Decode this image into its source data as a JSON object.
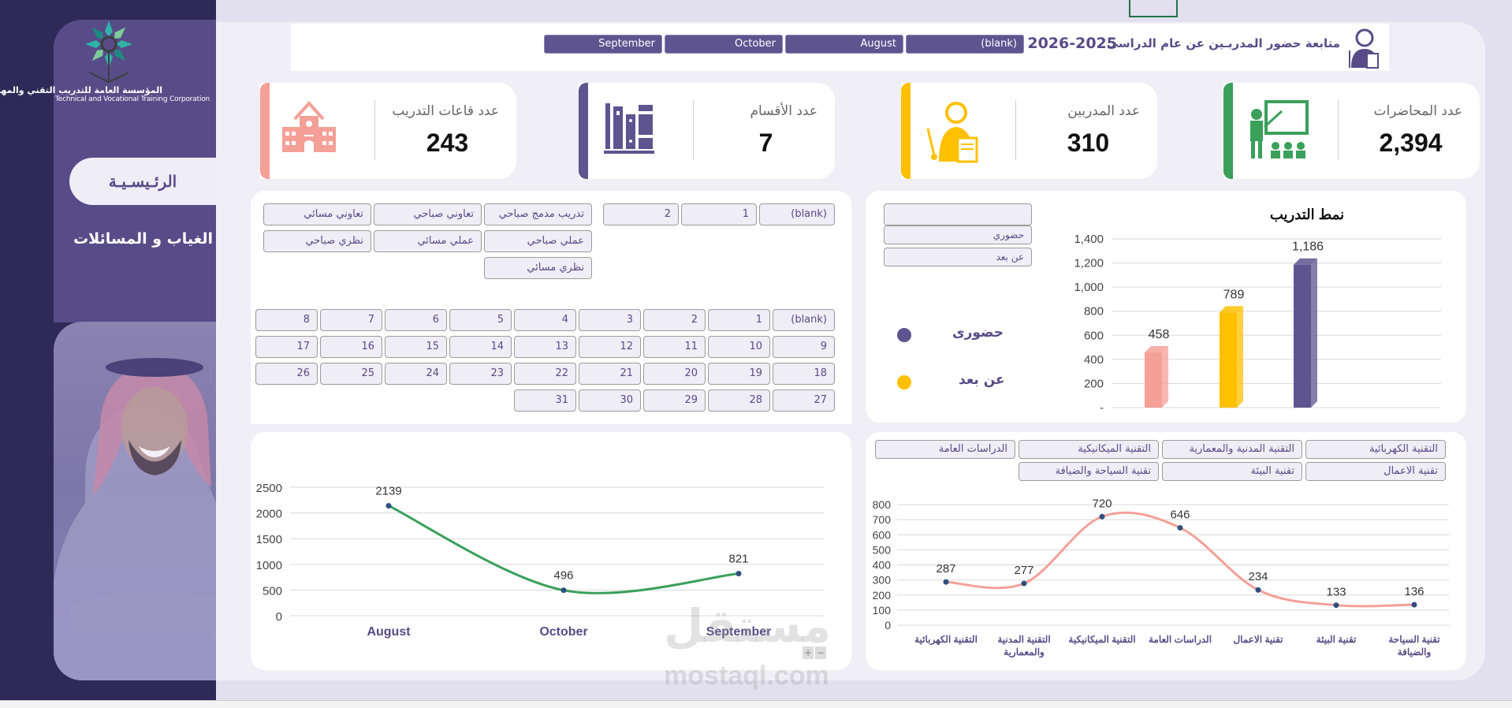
{
  "sidebar": {
    "org_name_ar": "المؤسسة العامة للتدريب التقني والمهني",
    "org_name_en": "Technical and Vocational Training Corporation",
    "nav": [
      {
        "label": "الرئـيسـيـة",
        "active": true
      },
      {
        "label": "الغياب و المسائلات",
        "active": false
      }
    ]
  },
  "header": {
    "title": "متابعة حضور المدربـين عن عام الدراسى",
    "year": "2026-2025",
    "month_slicer": [
      "(blank)",
      "August",
      "October",
      "September"
    ]
  },
  "kpis": [
    {
      "label": "عدد المحاضرات",
      "value": "2,394",
      "color": "#3aa05a",
      "icon": "lecture-icon"
    },
    {
      "label": "عدد المدربين",
      "value": "310",
      "color": "#ffc000",
      "icon": "trainer-icon"
    },
    {
      "label": "عدد الأقسام",
      "value": "7",
      "color": "#5e5490",
      "icon": "books-icon"
    },
    {
      "label": "عدد قاعات التدريب",
      "value": "243",
      "color": "#f4a097",
      "icon": "school-icon"
    }
  ],
  "slicers": {
    "period": [
      "(blank)",
      "1",
      "2"
    ],
    "session_type": [
      "تدريب مدمج صباحي",
      "تعاوني صباحي",
      "تعاوني مسائي",
      "عملي صباحي",
      "عملي مسائي",
      "نظري صباحي",
      "نظري مسائي"
    ],
    "day": [
      "(blank)",
      "1",
      "2",
      "3",
      "4",
      "5",
      "6",
      "7",
      "8",
      "9",
      "10",
      "11",
      "12",
      "13",
      "14",
      "15",
      "16",
      "17",
      "18",
      "19",
      "20",
      "21",
      "22",
      "23",
      "24",
      "25",
      "26",
      "27",
      "28",
      "29",
      "30",
      "31"
    ],
    "mode": [
      "",
      "حضوري",
      "عن بعد"
    ],
    "department": [
      "التقنية الكهربائية",
      "التقنية المدنية والمعمارية",
      "التقنية الميكانيكية",
      "الدراسات العامة",
      "تقنية الاعمال",
      "تقنية البيئة",
      "تقنية السياحة والضيافة"
    ]
  },
  "legend": [
    {
      "label": "حضورى",
      "color": "#5e5490"
    },
    {
      "label": "عن بعد",
      "color": "#ffc000"
    }
  ],
  "chart_data": [
    {
      "type": "bar",
      "title": "نمط التدريب",
      "categories": [
        "",
        "",
        ""
      ],
      "values": [
        458,
        789,
        1186
      ],
      "value_labels": [
        "458",
        "789",
        "1,186"
      ],
      "colors": [
        "#f4a097",
        "#ffc000",
        "#5e5490"
      ],
      "yticks": [
        "-",
        "200",
        "400",
        "600",
        "800",
        "1,000",
        "1,200",
        "1,400"
      ],
      "ylim": [
        0,
        1400
      ],
      "grid": true
    },
    {
      "type": "line",
      "title": "",
      "categories": [
        "August",
        "October",
        "September"
      ],
      "values": [
        2139,
        496,
        821
      ],
      "yticks": [
        "0",
        "500",
        "1000",
        "1500",
        "2000",
        "2500"
      ],
      "ylim": [
        0,
        2500
      ],
      "color": "#3aa05a",
      "grid": true
    },
    {
      "type": "line",
      "title": "",
      "categories": [
        "التقنية الكهربائية",
        "التقنية المدنية والمعمارية",
        "التقنية الميكانيكية",
        "الدراسات العامة",
        "تقنية الاعمال",
        "تقنية البيئة",
        "تقنية السياحة والضيافة"
      ],
      "category_lines": [
        [
          "التقنية الكهربائية"
        ],
        [
          "التقنية المدنية",
          "والمعمارية"
        ],
        [
          "التقنية الميكانيكية"
        ],
        [
          "الدراسات العامة"
        ],
        [
          "تقنية الاعمال"
        ],
        [
          "تقنية البيئة"
        ],
        [
          "تقنية السياحة",
          "والضيافة"
        ]
      ],
      "values": [
        287,
        277,
        720,
        646,
        234,
        133,
        136
      ],
      "yticks": [
        "0",
        "100",
        "200",
        "300",
        "400",
        "500",
        "600",
        "700",
        "800"
      ],
      "ylim": [
        0,
        800
      ],
      "color": "#f4a097",
      "grid": true
    }
  ],
  "watermark": {
    "ar": "مستقل",
    "en": "mostaql.com"
  },
  "chart_controls": {
    "plus": "+",
    "minus": "−"
  }
}
